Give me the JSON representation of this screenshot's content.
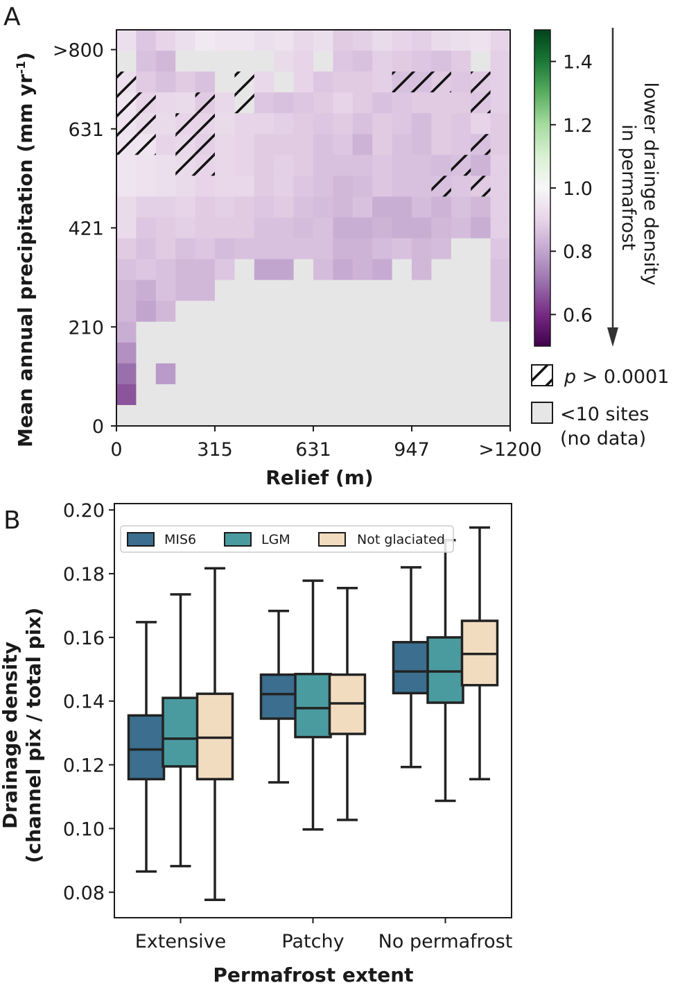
{
  "chart_data": [
    {
      "panel": "A",
      "type": "heatmap",
      "xlabel": "Relief (m)",
      "ylabel_main": "Mean annual precipitation (mm yr",
      "ylabel_sup": "-1",
      "ylabel_end": ")",
      "x_tick_labels": [
        "0",
        "315",
        "631",
        "947",
        ">1200"
      ],
      "y_tick_labels": [
        "0",
        "210",
        "421",
        "631",
        ">800"
      ],
      "n_cols": 20,
      "n_rows": 19,
      "row_order": "top-to-bottom (highest precipitation first)",
      "values": [
        [
          0.93,
          0.87,
          0.9,
          0.93,
          0.96,
          0.95,
          0.95,
          0.93,
          0.94,
          0.91,
          0.93,
          0.88,
          0.89,
          0.92,
          0.9,
          0.89,
          0.92,
          0.93,
          0.94,
          0.9
        ],
        [
          null,
          0.86,
          0.84,
          null,
          null,
          null,
          null,
          null,
          0.92,
          0.9,
          null,
          0.87,
          0.86,
          0.89,
          0.88,
          0.87,
          0.86,
          0.88,
          null,
          0.89
        ],
        [
          0.93,
          0.88,
          0.86,
          0.88,
          0.86,
          null,
          null,
          0.91,
          null,
          0.9,
          0.87,
          0.88,
          0.88,
          0.89,
          0.86,
          0.86,
          0.88,
          0.87,
          0.88,
          0.89
        ],
        [
          0.95,
          0.9,
          0.91,
          0.92,
          0.88,
          0.91,
          null,
          0.87,
          0.86,
          0.87,
          0.88,
          0.9,
          0.88,
          0.86,
          0.87,
          0.88,
          0.88,
          0.88,
          0.87,
          0.89
        ],
        [
          0.94,
          0.92,
          0.92,
          0.9,
          0.9,
          0.92,
          0.9,
          0.9,
          0.89,
          0.88,
          0.87,
          0.88,
          0.86,
          0.88,
          0.87,
          0.85,
          0.88,
          0.87,
          0.9,
          0.88
        ],
        [
          0.95,
          0.95,
          0.9,
          0.91,
          0.89,
          0.91,
          0.9,
          0.88,
          0.88,
          0.88,
          0.86,
          0.87,
          0.83,
          0.88,
          0.86,
          0.85,
          0.88,
          0.87,
          0.86,
          0.88
        ],
        [
          0.95,
          0.94,
          0.93,
          0.92,
          0.9,
          0.91,
          0.9,
          0.88,
          0.89,
          0.88,
          0.86,
          0.86,
          0.86,
          0.87,
          0.86,
          0.86,
          0.85,
          0.86,
          0.83,
          0.89
        ],
        [
          0.95,
          0.94,
          0.93,
          0.92,
          0.9,
          0.91,
          0.91,
          0.88,
          0.89,
          0.87,
          0.86,
          0.84,
          0.85,
          0.87,
          0.86,
          0.86,
          0.86,
          0.87,
          0.88,
          0.89
        ],
        [
          0.92,
          0.89,
          0.89,
          0.9,
          0.88,
          0.89,
          0.88,
          0.87,
          0.88,
          0.86,
          0.85,
          0.84,
          0.86,
          0.82,
          0.82,
          0.85,
          0.83,
          0.86,
          0.84,
          0.89
        ],
        [
          0.92,
          0.87,
          0.88,
          0.89,
          0.88,
          0.88,
          0.88,
          0.86,
          0.86,
          0.85,
          0.86,
          0.82,
          0.82,
          0.83,
          0.82,
          0.82,
          0.84,
          0.85,
          0.82,
          0.89
        ],
        [
          0.88,
          0.86,
          0.88,
          0.86,
          0.87,
          0.85,
          0.86,
          0.86,
          0.86,
          0.86,
          0.86,
          0.83,
          0.83,
          0.85,
          0.86,
          0.84,
          0.85,
          null,
          null,
          0.87
        ],
        [
          0.86,
          0.87,
          0.86,
          0.84,
          0.84,
          0.87,
          null,
          0.8,
          0.8,
          null,
          0.85,
          0.81,
          0.83,
          0.81,
          null,
          0.84,
          null,
          null,
          null,
          0.86
        ],
        [
          0.84,
          0.82,
          0.86,
          0.84,
          0.84,
          null,
          null,
          null,
          null,
          null,
          null,
          null,
          null,
          null,
          null,
          null,
          null,
          null,
          null,
          0.86
        ],
        [
          0.84,
          0.8,
          0.84,
          null,
          null,
          null,
          null,
          null,
          null,
          null,
          null,
          null,
          null,
          null,
          null,
          null,
          null,
          null,
          null,
          0.86
        ],
        [
          0.82,
          null,
          null,
          null,
          null,
          null,
          null,
          null,
          null,
          null,
          null,
          null,
          null,
          null,
          null,
          null,
          null,
          null,
          null,
          null
        ],
        [
          0.76,
          null,
          null,
          null,
          null,
          null,
          null,
          null,
          null,
          null,
          null,
          null,
          null,
          null,
          null,
          null,
          null,
          null,
          null,
          null
        ],
        [
          0.7,
          null,
          0.78,
          null,
          null,
          null,
          null,
          null,
          null,
          null,
          null,
          null,
          null,
          null,
          null,
          null,
          null,
          null,
          null,
          null
        ],
        [
          0.66,
          null,
          null,
          null,
          null,
          null,
          null,
          null,
          null,
          null,
          null,
          null,
          null,
          null,
          null,
          null,
          null,
          null,
          null,
          null
        ],
        [
          null,
          null,
          null,
          null,
          null,
          null,
          null,
          null,
          null,
          null,
          null,
          null,
          null,
          null,
          null,
          null,
          null,
          null,
          null,
          null
        ]
      ],
      "hatched_cells": [
        [
          2,
          0
        ],
        [
          3,
          0
        ],
        [
          4,
          0
        ],
        [
          5,
          0
        ],
        [
          3,
          1
        ],
        [
          4,
          1
        ],
        [
          5,
          1
        ],
        [
          4,
          3
        ],
        [
          5,
          3
        ],
        [
          6,
          3
        ],
        [
          3,
          4
        ],
        [
          4,
          4
        ],
        [
          5,
          4
        ],
        [
          6,
          4
        ],
        [
          2,
          6
        ],
        [
          3,
          6
        ],
        [
          2,
          14
        ],
        [
          2,
          15
        ],
        [
          2,
          16
        ],
        [
          2,
          18
        ],
        [
          3,
          18
        ],
        [
          5,
          18
        ],
        [
          6,
          17
        ],
        [
          7,
          16
        ],
        [
          7,
          18
        ]
      ],
      "colorbar": {
        "range": [
          0.5,
          1.5
        ],
        "tick_labels": [
          "0.6",
          "0.8",
          "1.0",
          "1.2",
          "1.4"
        ],
        "tick_values": [
          0.6,
          0.8,
          1.0,
          1.2,
          1.4
        ],
        "colormap": "PRGn",
        "arrow_label_line1": "lower drainge density",
        "arrow_label_line2": "in permafrost"
      },
      "legend": [
        {
          "symbol": "hatch",
          "label": "p > 0.0001",
          "label_italic": "p",
          "label_rest": " > 0.0001"
        },
        {
          "symbol": "grey",
          "label_line1": "<10 sites",
          "label_line2": "(no data)"
        }
      ],
      "colors": {
        "nodata": "#e6e6e6",
        "hatch": "#111111"
      }
    },
    {
      "panel": "B",
      "type": "box",
      "xlabel": "Permafrost extent",
      "ylabel_line1": "Drainage density",
      "ylabel_line2": "(channel pix / total pix)",
      "ylim": [
        0.072,
        0.202
      ],
      "y_tick_labels": [
        "0.08",
        "0.10",
        "0.12",
        "0.14",
        "0.16",
        "0.18",
        "0.20"
      ],
      "y_tick_values": [
        0.08,
        0.1,
        0.12,
        0.14,
        0.16,
        0.18,
        0.2
      ],
      "categories": [
        "Extensive",
        "Patchy",
        "No permafrost"
      ],
      "series": [
        {
          "name": "MIS6",
          "color": "#3b6e8f",
          "boxes": [
            {
              "whislo": 0.0865,
              "q1": 0.1155,
              "med": 0.1248,
              "q3": 0.1355,
              "whishi": 0.1648
            },
            {
              "whislo": 0.1145,
              "q1": 0.1345,
              "med": 0.1422,
              "q3": 0.1483,
              "whishi": 0.1683
            },
            {
              "whislo": 0.1193,
              "q1": 0.1425,
              "med": 0.1493,
              "q3": 0.1585,
              "whishi": 0.182
            }
          ]
        },
        {
          "name": "LGM",
          "color": "#4a9b9f",
          "boxes": [
            {
              "whislo": 0.0882,
              "q1": 0.1195,
              "med": 0.1282,
              "q3": 0.141,
              "whishi": 0.1735
            },
            {
              "whislo": 0.0997,
              "q1": 0.1287,
              "med": 0.1378,
              "q3": 0.1485,
              "whishi": 0.1778
            },
            {
              "whislo": 0.1087,
              "q1": 0.1395,
              "med": 0.1493,
              "q3": 0.16,
              "whishi": 0.1905
            }
          ]
        },
        {
          "name": "Not glaciated",
          "color": "#f2dcc0",
          "boxes": [
            {
              "whislo": 0.0776,
              "q1": 0.1155,
              "med": 0.1285,
              "q3": 0.1423,
              "whishi": 0.1817
            },
            {
              "whislo": 0.1027,
              "q1": 0.1297,
              "med": 0.1393,
              "q3": 0.1483,
              "whishi": 0.1755
            },
            {
              "whislo": 0.1155,
              "q1": 0.145,
              "med": 0.1548,
              "q3": 0.1652,
              "whishi": 0.1945
            }
          ]
        }
      ],
      "legend_position": "top-left"
    }
  ],
  "labels": {
    "panel_a": "A",
    "panel_b": "B"
  }
}
